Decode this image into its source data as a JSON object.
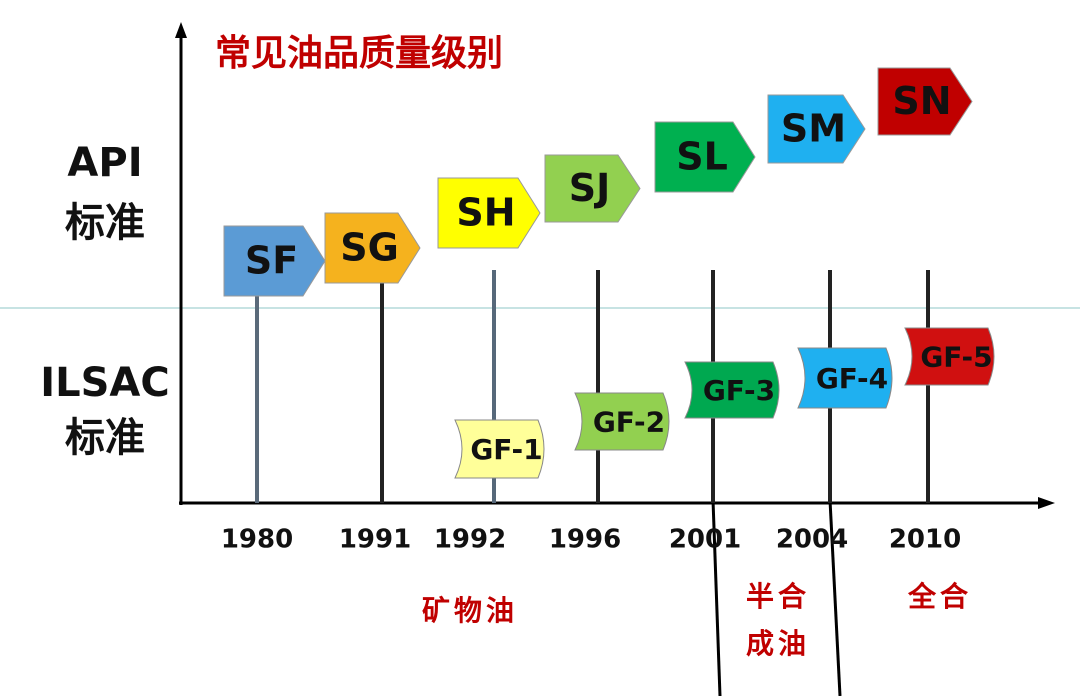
{
  "title": "常见油品质量级别",
  "side_labels": [
    [
      "API",
      "标准"
    ],
    [
      "ILSAC",
      "标准"
    ]
  ],
  "api_grades": [
    "SF",
    "SG",
    "SH",
    "SJ",
    "SL",
    "SM",
    "SN"
  ],
  "ilsac_grades": [
    "GF-1",
    "GF-2",
    "GF-3",
    "GF-4",
    "GF-5"
  ],
  "years": [
    "1980",
    "1991",
    "1992",
    "1996",
    "2001",
    "2004",
    "2010"
  ],
  "oil_types": [
    [
      "矿物油"
    ],
    [
      "半合",
      "成油"
    ],
    [
      "全合"
    ]
  ]
}
